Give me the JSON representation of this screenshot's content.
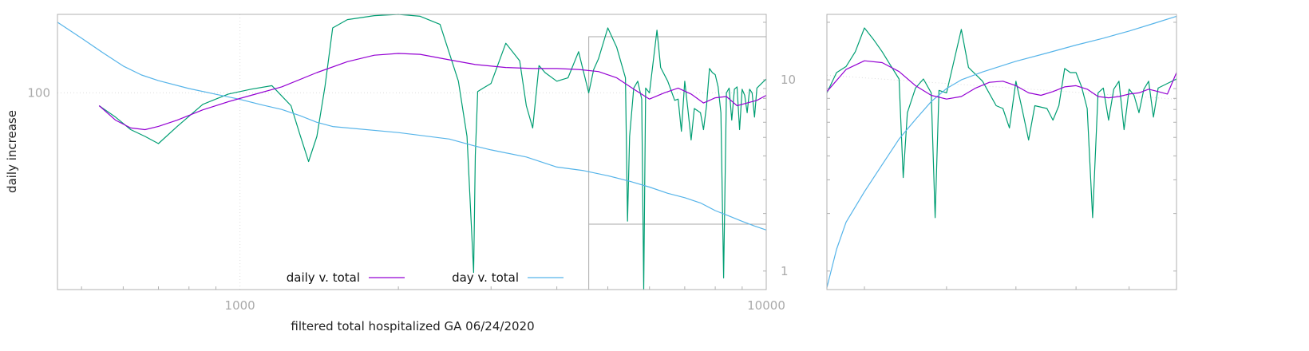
{
  "chart_data": [
    {
      "type": "line",
      "xlabel": "filtered total hospitalized GA 06/24/2020",
      "ylabel": "daily increase",
      "x_scale": "log",
      "y_scale": "log",
      "xlim": [
        450,
        10000
      ],
      "ylim": [
        20,
        190
      ],
      "y2lim": [
        0.8,
        22
      ],
      "x_ticks": [
        {
          "value": 1000,
          "label": "1000"
        },
        {
          "value": 10000,
          "label": "10000"
        }
      ],
      "y_ticks": [
        {
          "value": 100,
          "label": "100"
        }
      ],
      "y2_ticks": [
        {
          "value": 1,
          "label": "1"
        },
        {
          "value": 10,
          "label": "10"
        }
      ],
      "grid": true,
      "legend_position": "bottom-center",
      "inset_box_x": [
        4600,
        10000
      ],
      "colors": {
        "daily": "#9400d3",
        "day": "#56b4e9",
        "raw": "#009e73"
      },
      "series": [
        {
          "name": "daily v. total",
          "color": "#9400d3",
          "x": [
            540,
            580,
            620,
            660,
            700,
            760,
            850,
            950,
            1050,
            1200,
            1400,
            1600,
            1800,
            2000,
            2200,
            2500,
            2800,
            3200,
            3600,
            4000,
            4400,
            4800,
            5200,
            5600,
            6000,
            6400,
            6800,
            7200,
            7600,
            8000,
            8400,
            8800,
            9200,
            9600,
            10000
          ],
          "y": [
            90,
            80,
            75,
            74,
            76,
            80,
            87,
            93,
            98,
            105,
            118,
            129,
            136,
            138,
            137,
            131,
            126,
            123,
            122,
            122,
            121,
            119,
            113,
            103,
            95,
            100,
            104,
            99,
            92,
            96,
            97,
            90,
            92,
            94,
            98
          ]
        },
        {
          "name": "day v. total",
          "color": "#56b4e9",
          "x": [
            450,
            500,
            550,
            600,
            650,
            700,
            800,
            900,
            1000,
            1100,
            1200,
            1300,
            1400,
            1500,
            2000,
            2500,
            2800,
            3000,
            3500,
            4000,
            4500,
            5000,
            5500,
            6000,
            6500,
            7000,
            7500,
            8000,
            8500,
            9000,
            9500,
            10000
          ],
          "y": [
            20,
            16.5,
            13.8,
            11.8,
            10.6,
            9.9,
            9.0,
            8.4,
            7.9,
            7.4,
            7.0,
            6.5,
            6.0,
            5.7,
            5.3,
            4.9,
            4.5,
            4.3,
            3.95,
            3.5,
            3.35,
            3.15,
            2.95,
            2.75,
            2.55,
            2.42,
            2.27,
            2.07,
            1.94,
            1.82,
            1.72,
            1.64
          ]
        },
        {
          "name": "",
          "color": "#009e73",
          "x": [
            540,
            580,
            620,
            660,
            700,
            760,
            850,
            950,
            1050,
            1150,
            1250,
            1300,
            1350,
            1400,
            1450,
            1500,
            1600,
            1800,
            2000,
            2200,
            2400,
            2600,
            2700,
            2780,
            2800,
            2830,
            2900,
            3000,
            3200,
            3400,
            3500,
            3600,
            3700,
            3800,
            4000,
            4200,
            4400,
            4600,
            4700,
            4800,
            5000,
            5200,
            5400,
            5450,
            5500,
            5600,
            5700,
            5800,
            5850,
            5900,
            6000,
            6200,
            6300,
            6500,
            6700,
            6800,
            6900,
            7000,
            7100,
            7200,
            7300,
            7500,
            7600,
            7700,
            7800,
            7900,
            8000,
            8100,
            8200,
            8300,
            8400,
            8500,
            8600,
            8700,
            8800,
            8900,
            9000,
            9100,
            9200,
            9300,
            9400,
            9500,
            9600,
            9800,
            10000
          ],
          "y": [
            90,
            82,
            74,
            70,
            66,
            76,
            91,
            99,
            103,
            106,
            90,
            71,
            57,
            70,
            105,
            170,
            182,
            188,
            190,
            187,
            175,
            110,
            70,
            23,
            60,
            101,
            104,
            108,
            150,
            130,
            90,
            75,
            125,
            118,
            110,
            113,
            140,
            100,
            121,
            132,
            170,
            145,
            113,
            35,
            70,
            104,
            110,
            95,
            20,
            104,
            100,
            167,
            123,
            110,
            94,
            95,
            73,
            110,
            87,
            68,
            88,
            85,
            74,
            90,
            122,
            118,
            116,
            105,
            85,
            22,
            100,
            104,
            80,
            103,
            105,
            74,
            103,
            98,
            85,
            103,
            100,
            82,
            104,
            108,
            112
          ]
        }
      ]
    },
    {
      "type": "line",
      "panel": "inset",
      "xlim": [
        4600,
        10000
      ],
      "series_names": [],
      "series": [
        {
          "color": "#9400d3",
          "x": [
            4600,
            4800,
            5000,
            5200,
            5400,
            5600,
            5800,
            6000,
            6200,
            6400,
            6600,
            6800,
            7000,
            7200,
            7400,
            7600,
            7800,
            8000,
            8200,
            8400,
            8600,
            8800,
            9000,
            9200,
            9400,
            9600,
            9800,
            10000
          ],
          "y": [
            101,
            121,
            130,
            128,
            119,
            106,
            98,
            95,
            97,
            104,
            109,
            110,
            106,
            100,
            98,
            101,
            105,
            106,
            103,
            97,
            96,
            97,
            99,
            100,
            103,
            101,
            99,
            118
          ]
        },
        {
          "color": "#56b4e9",
          "x": [
            4600,
            4700,
            4800,
            5000,
            5200,
            5400,
            5600,
            5800,
            6000,
            6200,
            6500,
            7000,
            7500,
            8000,
            8500,
            9000,
            9500,
            10000
          ],
          "y": [
            0.82,
            1.3,
            1.8,
            2.6,
            3.6,
            4.9,
            6.2,
            7.7,
            9.0,
            10.0,
            11.0,
            12.5,
            13.8,
            15.2,
            16.5,
            18.0,
            19.7,
            21.5
          ]
        },
        {
          "color": "#009e73",
          "x": [
            4600,
            4700,
            4800,
            4900,
            5000,
            5100,
            5200,
            5300,
            5400,
            5450,
            5500,
            5600,
            5700,
            5800,
            5850,
            5900,
            6000,
            6200,
            6300,
            6500,
            6700,
            6800,
            6900,
            7000,
            7100,
            7200,
            7300,
            7500,
            7600,
            7700,
            7800,
            7900,
            8000,
            8100,
            8200,
            8300,
            8400,
            8500,
            8600,
            8700,
            8800,
            8900,
            9000,
            9100,
            9200,
            9300,
            9400,
            9500,
            9600,
            9800,
            10000
          ],
          "y": [
            100,
            118,
            124,
            140,
            170,
            155,
            140,
            125,
            112,
            50,
            85,
            104,
            112,
            100,
            36,
            102,
            100,
            168,
            123,
            110,
            90,
            88,
            75,
            110,
            87,
            68,
            90,
            88,
            80,
            90,
            122,
            118,
            118,
            105,
            88,
            36,
            100,
            104,
            80,
            103,
            110,
            74,
            103,
            98,
            85,
            103,
            110,
            82,
            104,
            108,
            112
          ]
        }
      ]
    }
  ]
}
